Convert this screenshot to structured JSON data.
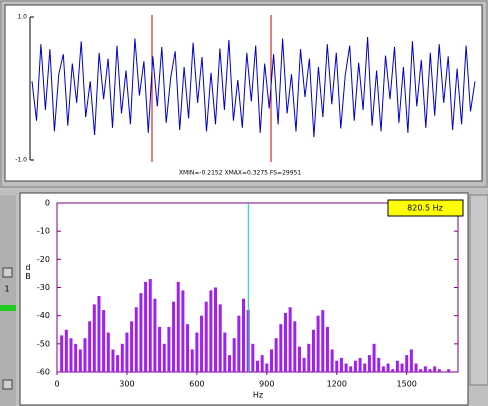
{
  "chart_data": [
    {
      "type": "line",
      "color": "#0000cc",
      "values": [
        0.1,
        -0.45,
        0.62,
        -0.3,
        0.55,
        -0.6,
        0.2,
        0.48,
        -0.52,
        0.35,
        -0.2,
        0.66,
        -0.4,
        0.1,
        -0.65,
        0.5,
        -0.15,
        0.42,
        -0.55,
        0.6,
        -0.35,
        0.25,
        -0.5,
        0.7,
        -0.1,
        0.38,
        -0.62,
        0.45,
        -0.25,
        0.58,
        -0.48,
        0.15,
        0.52,
        -0.58,
        0.3,
        -0.42,
        0.64,
        -0.2,
        0.44,
        -0.6,
        0.22,
        -0.5,
        0.56,
        -0.3,
        0.68,
        -0.45,
        0.12,
        -0.55,
        0.5,
        -0.18,
        0.6,
        -0.62,
        0.35,
        -0.28,
        0.48,
        -0.5,
        0.7,
        -0.35,
        0.2,
        -0.6,
        0.55,
        -0.12,
        0.42,
        -0.68,
        0.3,
        -0.4,
        0.62,
        -0.22,
        0.5,
        -0.56,
        0.18,
        0.6,
        -0.45,
        0.36,
        -0.3,
        0.72,
        -0.52,
        0.25,
        -0.6,
        0.46,
        -0.15,
        0.58,
        -0.48,
        0.3,
        -0.62,
        0.66,
        -0.25,
        0.4,
        -0.55,
        0.5,
        -0.38,
        0.62,
        -0.2,
        0.45,
        -0.58,
        0.28,
        -0.5,
        0.6,
        -0.32,
        0.1
      ],
      "ylim": [
        -1,
        1
      ],
      "yticks": [
        {
          "value": 1,
          "label": "1.0"
        },
        {
          "value": -1,
          "label": "-1.0"
        }
      ],
      "status": "XMIN=-0.2152   XMAX=0.3275   FS=29951"
    },
    {
      "type": "stem",
      "color": "#a020f0",
      "x": [
        0,
        20,
        40,
        60,
        80,
        100,
        120,
        140,
        160,
        180,
        200,
        220,
        240,
        260,
        280,
        300,
        320,
        340,
        360,
        380,
        400,
        420,
        440,
        460,
        480,
        500,
        520,
        540,
        560,
        580,
        600,
        620,
        640,
        660,
        680,
        700,
        720,
        740,
        760,
        780,
        800,
        820,
        840,
        860,
        880,
        900,
        920,
        940,
        960,
        980,
        1000,
        1020,
        1040,
        1060,
        1080,
        1100,
        1120,
        1140,
        1160,
        1180,
        1200,
        1220,
        1240,
        1260,
        1280,
        1300,
        1320,
        1340,
        1360,
        1380,
        1400,
        1420,
        1440,
        1460,
        1480,
        1500,
        1520,
        1540,
        1560,
        1580,
        1600,
        1620,
        1640,
        1660,
        1680,
        1700
      ],
      "values": [
        -60,
        -47,
        -45,
        -48,
        -50,
        -52,
        -48,
        -42,
        -36,
        -33,
        -38,
        -46,
        -52,
        -54,
        -50,
        -46,
        -42,
        -37,
        -32,
        -28,
        -27,
        -34,
        -44,
        -50,
        -44,
        -35,
        -28,
        -31,
        -43,
        -52,
        -46,
        -40,
        -35,
        -31,
        -30,
        -36,
        -46,
        -54,
        -48,
        -40,
        -34,
        -38,
        -50,
        -56,
        -54,
        -57,
        -52,
        -48,
        -43,
        -39,
        -37,
        -42,
        -51,
        -55,
        -50,
        -45,
        -40,
        -38,
        -44,
        -52,
        -56,
        -55,
        -57,
        -58,
        -56,
        -55,
        -57,
        -54,
        -50,
        -55,
        -58,
        -57,
        -59,
        -56,
        -57,
        -54,
        -52,
        -57,
        -59,
        -58,
        -59,
        -58,
        -59,
        -60,
        -59,
        -60
      ],
      "xlim": [
        0,
        1720
      ],
      "xticks": [
        0,
        300,
        600,
        900,
        1200,
        1500
      ],
      "ylim": [
        -60,
        0
      ],
      "yticks": [
        0,
        -10,
        -20,
        -30,
        -40,
        -50,
        -60
      ],
      "x_label": "Hz",
      "y_label": "dB",
      "cursor": {
        "value": 820.5,
        "label": "820.5 Hz"
      }
    }
  ],
  "side_label": "1"
}
